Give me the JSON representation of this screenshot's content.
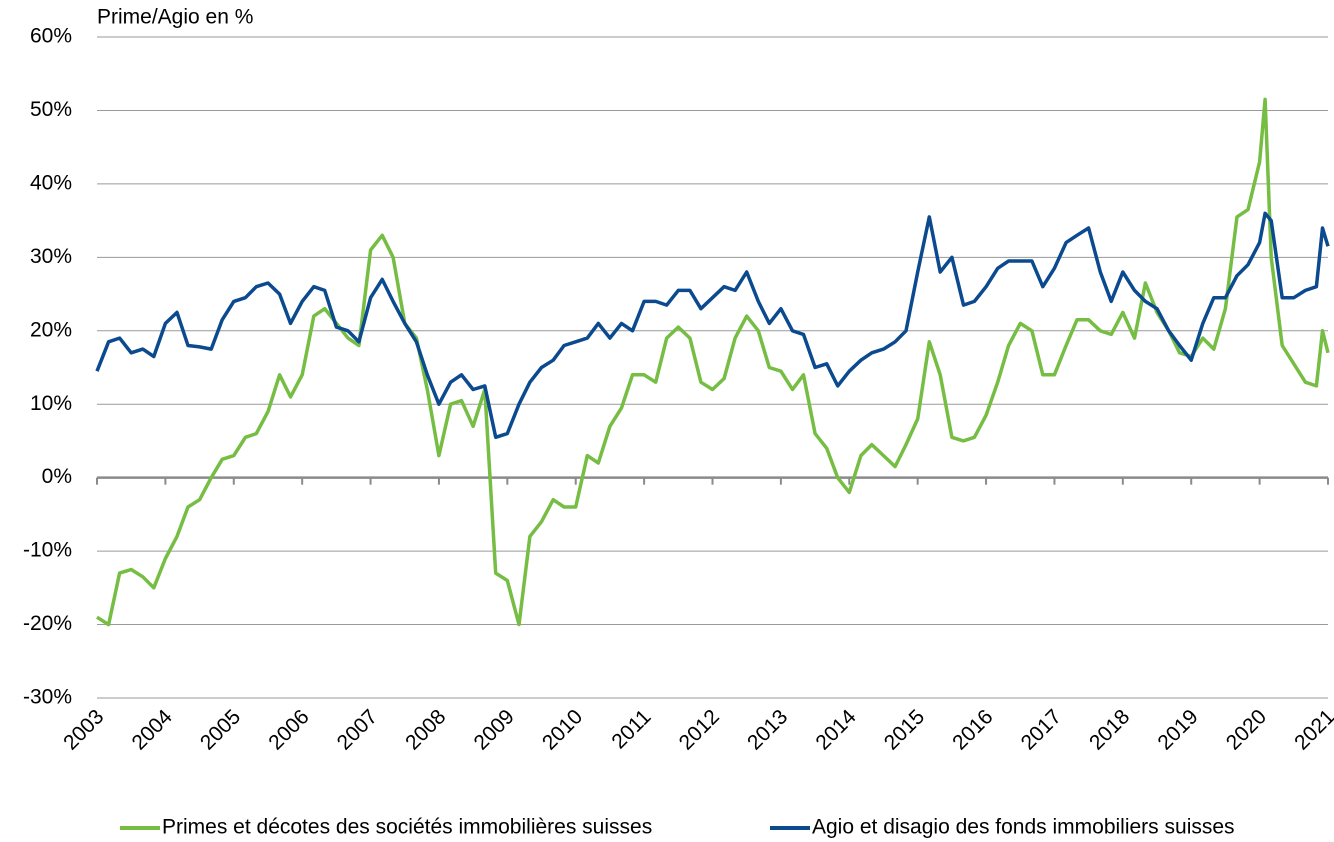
{
  "chart_data": {
    "type": "line",
    "ylabel": "Prime/Agio en %",
    "x": [
      2003,
      2003.17,
      2003.33,
      2003.5,
      2003.67,
      2003.83,
      2004,
      2004.17,
      2004.33,
      2004.5,
      2004.67,
      2004.83,
      2005,
      2005.17,
      2005.33,
      2005.5,
      2005.67,
      2005.83,
      2006,
      2006.17,
      2006.33,
      2006.5,
      2006.67,
      2006.83,
      2007,
      2007.17,
      2007.33,
      2007.5,
      2007.67,
      2007.83,
      2008,
      2008.17,
      2008.33,
      2008.5,
      2008.67,
      2008.83,
      2009,
      2009.17,
      2009.33,
      2009.5,
      2009.67,
      2009.83,
      2010,
      2010.17,
      2010.33,
      2010.5,
      2010.67,
      2010.83,
      2011,
      2011.17,
      2011.33,
      2011.5,
      2011.67,
      2011.83,
      2012,
      2012.17,
      2012.33,
      2012.5,
      2012.67,
      2012.83,
      2013,
      2013.17,
      2013.33,
      2013.5,
      2013.67,
      2013.83,
      2014,
      2014.17,
      2014.33,
      2014.5,
      2014.67,
      2014.83,
      2015,
      2015.17,
      2015.33,
      2015.5,
      2015.67,
      2015.83,
      2016,
      2016.17,
      2016.33,
      2016.5,
      2016.67,
      2016.83,
      2017,
      2017.17,
      2017.33,
      2017.5,
      2017.67,
      2017.83,
      2018,
      2018.17,
      2018.33,
      2018.5,
      2018.67,
      2018.83,
      2019,
      2019.17,
      2019.33,
      2019.5,
      2019.67,
      2019.83,
      2020,
      2020.08,
      2020.17,
      2020.33,
      2020.5,
      2020.67,
      2020.83,
      2020.92,
      2021
    ],
    "series": [
      {
        "name": "Primes et décotes des sociétés immobilières suisses",
        "color": "#76bd43",
        "values": [
          -19,
          -20,
          -13,
          -12.5,
          -13.5,
          -15,
          -11,
          -8,
          -4,
          -3,
          0,
          2.5,
          3,
          5.5,
          6,
          9,
          14,
          11,
          14,
          22,
          23,
          21,
          19,
          18,
          31,
          33,
          30,
          21,
          19,
          12,
          3,
          10,
          10.5,
          7,
          12,
          -13,
          -14,
          -20,
          -8,
          -6,
          -3,
          -4,
          -4,
          3,
          2,
          7,
          9.5,
          14,
          14,
          13,
          19,
          20.5,
          19,
          13,
          12,
          13.5,
          19,
          22,
          20,
          15,
          14.5,
          12,
          14,
          6,
          4,
          0,
          -2,
          3,
          4.5,
          3,
          1.5,
          4.5,
          8,
          18.5,
          14,
          5.5,
          5,
          5.5,
          8.5,
          13,
          18,
          21,
          20,
          14,
          14,
          18,
          21.5,
          21.5,
          20,
          19.5,
          22.5,
          19,
          26.5,
          22.5,
          20,
          17,
          16.5,
          19,
          17.5,
          23,
          35.5,
          36.5,
          43,
          51.5,
          30,
          18,
          15.5,
          13,
          12.5,
          20,
          17
        ]
      },
      {
        "name": "Agio et disagio des fonds immobiliers suisses",
        "color": "#0b4a8f",
        "values": [
          14.5,
          18.5,
          19,
          17,
          17.5,
          16.5,
          21,
          22.5,
          18,
          17.8,
          17.5,
          21.5,
          24,
          24.5,
          26,
          26.5,
          25,
          21,
          24,
          26,
          25.5,
          20.5,
          20,
          18.5,
          24.5,
          27,
          24,
          21,
          18.5,
          14,
          10,
          13,
          14,
          12,
          12.5,
          5.5,
          6,
          10,
          13,
          15,
          16,
          18,
          18.5,
          19,
          21,
          19,
          21,
          20,
          24,
          24,
          23.5,
          25.5,
          25.5,
          23,
          24.5,
          26,
          25.5,
          28,
          24,
          21,
          23,
          20,
          19.5,
          15,
          15.5,
          12.5,
          14.5,
          16,
          17,
          17.5,
          18.5,
          20,
          28,
          35.5,
          28,
          30,
          23.5,
          24,
          26,
          28.5,
          29.5,
          29.5,
          29.5,
          26,
          28.5,
          32,
          33,
          34,
          28,
          24,
          28,
          25.5,
          24,
          23,
          20,
          18,
          16,
          21,
          24.5,
          24.5,
          27.5,
          29,
          32,
          36,
          35,
          24.5,
          24.5,
          25.5,
          26,
          34,
          31.5
        ]
      }
    ],
    "xlim": [
      2003,
      2021
    ],
    "xticks": [
      2003,
      2004,
      2005,
      2006,
      2007,
      2008,
      2009,
      2010,
      2011,
      2012,
      2013,
      2014,
      2015,
      2016,
      2017,
      2018,
      2019,
      2020,
      2021
    ],
    "ylim": [
      -30,
      60
    ],
    "yticks": [
      {
        "value": -30,
        "label": "-30%"
      },
      {
        "value": -20,
        "label": "-20%"
      },
      {
        "value": -10,
        "label": "-10%"
      },
      {
        "value": 0,
        "label": "0%"
      },
      {
        "value": 10,
        "label": "10%"
      },
      {
        "value": 20,
        "label": "20%"
      },
      {
        "value": 30,
        "label": "30%"
      },
      {
        "value": 40,
        "label": "40%"
      },
      {
        "value": 50,
        "label": "50%"
      },
      {
        "value": 60,
        "label": "60%"
      }
    ],
    "grid": true
  }
}
